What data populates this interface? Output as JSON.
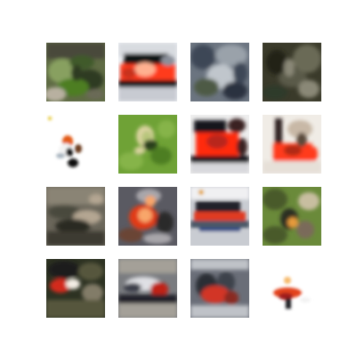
{
  "grid": {
    "rows": 4,
    "columns": 4,
    "tiles": [
      {
        "palette": [
          "#5f6b44",
          "#3f5a2a",
          "#2e3a24",
          "#88a060",
          "#b8b0a0",
          "#4a4a3a"
        ]
      },
      {
        "palette": [
          "#eef0f4",
          "#111318",
          "#ff3a1e",
          "#c8301c",
          "#ffb090",
          "#8a8f9a"
        ]
      },
      {
        "palette": [
          "#6b7480",
          "#3c4656",
          "#9aa2aa",
          "#4d5a44",
          "#2b3240",
          "#c0c6cc"
        ]
      },
      {
        "palette": [
          "#3a3a2a",
          "#5a5a4a",
          "#222219",
          "#6b6a56",
          "#8a8877",
          "#2f3a2a"
        ]
      },
      {
        "palette": [
          "#ffffff",
          "#f3f3f3",
          "#e25a18",
          "#111111",
          "#6b3a1e",
          "#a9b5c0"
        ]
      },
      {
        "palette": [
          "#6fa236",
          "#4d7e23",
          "#b8c67c",
          "#dad3a0",
          "#2c3f1a",
          "#86b44a"
        ]
      },
      {
        "palette": [
          "#eeeeee",
          "#14161c",
          "#ff2a0e",
          "#b8281a",
          "#d8d8dc",
          "#3a2020"
        ]
      },
      {
        "palette": [
          "#f0ece6",
          "#2a1a1a",
          "#ff3a1a",
          "#b02a14",
          "#c8b8a6",
          "#5a4a3a"
        ]
      },
      {
        "palette": [
          "#6a665a",
          "#4a4a3e",
          "#8a8474",
          "#2c2c24",
          "#b4a692",
          "#3e3a30"
        ]
      },
      {
        "palette": [
          "#5a5a62",
          "#e13a12",
          "#f8a66a",
          "#2b2b2b",
          "#a8a6aa",
          "#6a4434"
        ]
      },
      {
        "palette": [
          "#c9ccd2",
          "#20242c",
          "#e03a22",
          "#4c5868",
          "#f0f0f2",
          "#2a4a8a"
        ]
      },
      {
        "palette": [
          "#6a8a3a",
          "#4a5a2a",
          "#e59a3a",
          "#2a2d24",
          "#7a6a5a",
          "#c8bea0"
        ]
      },
      {
        "palette": [
          "#2d3222",
          "#57573e",
          "#d32c1e",
          "#f3ede4",
          "#1a1c1a",
          "#827c68"
        ]
      },
      {
        "palette": [
          "#7a7c80",
          "#3a3e48",
          "#dfe0e4",
          "#c02018",
          "#24242c",
          "#a4a098"
        ]
      },
      {
        "palette": [
          "#6a6e78",
          "#3e424c",
          "#d23626",
          "#2a2e36",
          "#bfc2c8",
          "#8a2a20"
        ]
      },
      {
        "palette": [
          "#ffffff",
          "#f2f2f2",
          "#e3421a",
          "#1e1e22",
          "#f6b96a",
          "#a01c1c"
        ]
      }
    ]
  }
}
